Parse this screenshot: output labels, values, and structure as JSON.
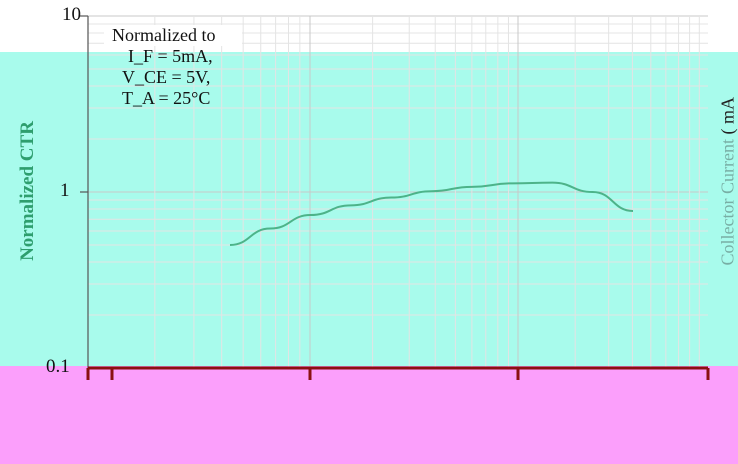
{
  "chart_data": {
    "type": "line",
    "title": "",
    "ylabel": "Normalized CTR",
    "y2label": "( mA",
    "y2label_suffix": "Collector Current",
    "xlabel": "",
    "yscale": "log",
    "ylim": [
      0.1,
      10
    ],
    "y_ticks": [
      "10",
      "1",
      "0.1"
    ],
    "grid": true,
    "note": [
      "Normalized to",
      "I_F = 5mA,",
      "V_CE = 5V,",
      "T_A = 25°C"
    ],
    "series": [
      {
        "color": "#4db389",
        "x": [
          0,
          1,
          2,
          3,
          4,
          5,
          6,
          7,
          8,
          9,
          10
        ],
        "y": [
          0.5,
          0.62,
          0.74,
          0.84,
          0.93,
          1.01,
          1.07,
          1.12,
          1.13,
          1.0,
          0.78
        ]
      }
    ]
  },
  "colors": {
    "line": "#4db389",
    "band_top": "#a8fbec",
    "band_bottom": "#fb9ffb",
    "axis_label": "#2e9e6e"
  }
}
